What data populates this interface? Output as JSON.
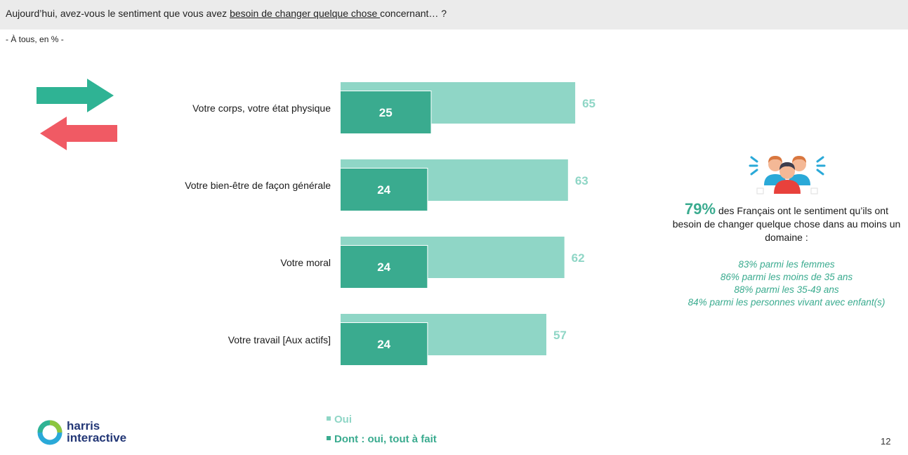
{
  "header": {
    "question_prefix": "Aujourd’hui, avez-vous le sentiment que vous avez ",
    "question_underlined": "besoin de changer quelque chose ",
    "question_suffix": "concernant… ?",
    "base_note": "- À tous, en % -"
  },
  "chart_data": {
    "type": "bar",
    "orientation": "horizontal",
    "categories": [
      "Votre corps, votre état physique",
      "Votre bien-être de façon générale",
      "Votre moral",
      "Votre travail [Aux actifs]"
    ],
    "series": [
      {
        "name": "Oui",
        "values": [
          65,
          63,
          62,
          57
        ],
        "color": "#8fd6c6"
      },
      {
        "name": "Dont : oui, tout à fait",
        "values": [
          25,
          24,
          24,
          24
        ],
        "color": "#3aab8f"
      }
    ],
    "xlim": [
      0,
      100
    ],
    "grid": false,
    "legend_position": "bottom"
  },
  "legend": {
    "oui_label": "Oui",
    "dont_label": "Dont : oui, tout à fait"
  },
  "callout": {
    "main_percent": "79%",
    "main_text": " des Français ont le sentiment qu’ils ont besoin de changer quelque chose dans au moins un domaine :",
    "details": [
      "83% parmi les femmes",
      "86% parmi les moins de 35 ans",
      "88% parmi les 35-49 ans",
      "84% parmi les personnes vivant avec enfant(s)"
    ]
  },
  "branding": {
    "logo_line1": "harris",
    "logo_line2": "interactive"
  },
  "page_number": "12",
  "colors": {
    "light_teal": "#8fd6c6",
    "dark_teal": "#3aab8f",
    "red": "#f05a64",
    "navy": "#233776"
  },
  "icons": [
    "arrows-exchange-icon",
    "people-group-icon",
    "harris-logo-ring-icon"
  ]
}
